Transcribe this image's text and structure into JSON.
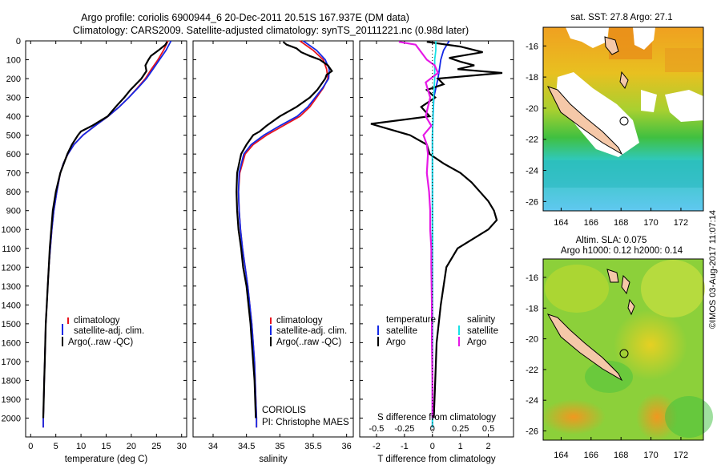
{
  "header": {
    "line1": "Argo profile: coriolis 6900944_6 20-Dec-2011 20.51S 167.937E (DM data)",
    "line2": "Climatology: CARS2009. Satellite-adjusted climatology: synTS_20111221.nc (0.98d later)"
  },
  "credit": {
    "institution": "CORIOLIS",
    "pi": "PI: Christophe MAES"
  },
  "stamp": "©IMOS 03-Aug-2017 11:07:14",
  "colors": {
    "climatology": "#e8141e",
    "satellite": "#1428e6",
    "argo": "#000000",
    "salinity_satellite": "#19e1e6",
    "salinity_argo": "#e619e6"
  },
  "chart_data": [
    {
      "type": "line",
      "id": "temperature",
      "xlabel": "temperature (deg C)",
      "ylabel": "",
      "xlim": [
        -1,
        31
      ],
      "ylim": [
        2100,
        0
      ],
      "xticks": [
        0,
        5,
        10,
        15,
        20,
        25,
        30
      ],
      "yticks": [
        0,
        100,
        200,
        300,
        400,
        500,
        600,
        700,
        800,
        900,
        1000,
        1100,
        1200,
        1300,
        1400,
        1500,
        1600,
        1700,
        1800,
        1900,
        2000
      ],
      "legend": [
        "climatology",
        "satellite-adj. clim.",
        "Argo(..raw -QC)"
      ],
      "series": [
        {
          "name": "climatology",
          "depth": [
            0,
            50,
            100,
            150,
            200,
            250,
            300,
            350,
            400,
            450,
            500,
            550,
            600,
            650,
            700,
            800,
            900,
            1000,
            1100,
            1200,
            1300,
            1400,
            1500,
            1600,
            1700,
            1800,
            1900,
            2000,
            2050
          ],
          "values": [
            27.3,
            26.4,
            25.3,
            24.0,
            22.8,
            21.2,
            19.5,
            17.6,
            15.4,
            12.8,
            10.4,
            8.6,
            7.4,
            6.5,
            5.9,
            5.2,
            4.6,
            4.2,
            3.9,
            3.6,
            3.4,
            3.2,
            3.0,
            2.9,
            2.8,
            2.7,
            2.6,
            2.5,
            2.5
          ]
        },
        {
          "name": "satellite-adj. clim.",
          "depth": [
            0,
            50,
            100,
            150,
            200,
            250,
            300,
            350,
            400,
            450,
            500,
            550,
            600,
            650,
            700,
            800,
            900,
            1000,
            1100,
            1200,
            1300,
            1400,
            1500,
            1600,
            1700,
            1800,
            1900,
            2000,
            2050
          ],
          "values": [
            27.9,
            26.9,
            25.6,
            24.3,
            23.0,
            21.3,
            19.5,
            17.6,
            15.4,
            12.8,
            10.4,
            8.6,
            7.4,
            6.5,
            5.9,
            5.2,
            4.6,
            4.2,
            3.9,
            3.6,
            3.4,
            3.2,
            3.0,
            2.9,
            2.8,
            2.7,
            2.6,
            2.5,
            2.5
          ]
        },
        {
          "name": "Argo(..raw -QC)",
          "depth": [
            5,
            20,
            50,
            80,
            100,
            130,
            160,
            200,
            230,
            260,
            300,
            350,
            400,
            450,
            480,
            500,
            550,
            600,
            700,
            800,
            900,
            1000,
            1100,
            1200,
            1300,
            1400,
            1500,
            1600,
            1700,
            1800,
            1900,
            2000
          ],
          "values": [
            27.1,
            26.8,
            25.4,
            23.9,
            23.4,
            22.8,
            23.0,
            22.0,
            20.9,
            19.8,
            18.6,
            16.9,
            15.3,
            12.2,
            10.0,
            9.4,
            8.2,
            7.3,
            5.9,
            5.0,
            4.4,
            4.1,
            3.8,
            3.6,
            3.4,
            3.2,
            3.0,
            2.9,
            2.8,
            2.7,
            2.6,
            2.5
          ]
        }
      ]
    },
    {
      "type": "line",
      "id": "salinity",
      "xlabel": "salinity",
      "ylabel": "",
      "xlim": [
        33.7,
        36.1
      ],
      "xticks": [
        34,
        34.5,
        35,
        35.5,
        36
      ],
      "xticklabels": [
        "34",
        "34.5",
        "35",
        "35.5",
        "36"
      ],
      "legend": [
        "climatology",
        "satellite-adj. clim.",
        "Argo(..raw -QC)"
      ],
      "series": [
        {
          "name": "climatology",
          "depth": [
            0,
            50,
            100,
            150,
            200,
            250,
            300,
            350,
            400,
            450,
            500,
            550,
            600,
            700,
            800,
            900,
            1000,
            1100,
            1200,
            1300,
            1400,
            1500,
            1600,
            1700,
            1800,
            1900,
            2000,
            2050
          ],
          "values": [
            35.3,
            35.5,
            35.65,
            35.7,
            35.72,
            35.65,
            35.55,
            35.45,
            35.3,
            35.05,
            34.8,
            34.6,
            34.48,
            34.4,
            34.38,
            34.39,
            34.41,
            34.44,
            34.48,
            34.52,
            34.55,
            34.58,
            34.6,
            34.62,
            34.63,
            34.64,
            34.65,
            34.65
          ]
        },
        {
          "name": "satellite-adj. clim.",
          "depth": [
            0,
            50,
            100,
            150,
            200,
            250,
            300,
            350,
            400,
            450,
            500,
            550,
            600,
            700,
            800,
            900,
            1000,
            1100,
            1200,
            1300,
            1400,
            1500,
            1600,
            1700,
            1800,
            1900,
            2000,
            2050
          ],
          "values": [
            35.35,
            35.55,
            35.68,
            35.74,
            35.73,
            35.64,
            35.53,
            35.42,
            35.26,
            35.0,
            34.76,
            34.57,
            34.46,
            34.39,
            34.38,
            34.39,
            34.41,
            34.44,
            34.48,
            34.52,
            34.55,
            34.58,
            34.6,
            34.62,
            34.63,
            34.64,
            34.65,
            34.65
          ]
        },
        {
          "name": "Argo(..raw -QC)",
          "depth": [
            5,
            20,
            40,
            60,
            80,
            100,
            130,
            160,
            180,
            200,
            230,
            260,
            300,
            350,
            400,
            450,
            480,
            500,
            550,
            600,
            700,
            800,
            900,
            1000,
            1100,
            1200,
            1300,
            1400,
            1500,
            1600,
            1700,
            1800,
            1900,
            2000
          ],
          "values": [
            35.05,
            35.1,
            35.25,
            35.32,
            35.45,
            35.6,
            35.72,
            35.78,
            35.7,
            35.68,
            35.62,
            35.56,
            35.45,
            35.25,
            35.0,
            34.8,
            34.7,
            34.6,
            34.5,
            34.42,
            34.36,
            34.35,
            34.36,
            34.38,
            34.42,
            34.45,
            34.5,
            34.53,
            34.56,
            34.58,
            34.6,
            34.62,
            34.63,
            34.64
          ]
        }
      ]
    },
    {
      "type": "line",
      "id": "difference",
      "xlabel": "T difference from climatology",
      "xlabel2": "S difference from climatology",
      "xlim": [
        -2.6,
        2.9
      ],
      "xticks": [
        -2,
        -1,
        0,
        1,
        2
      ],
      "sticks": [
        -0.5,
        -0.25,
        0,
        0.25,
        0.5
      ],
      "sticklabels": [
        "-0.5",
        "-0.25",
        "0",
        "0.25",
        "0.5"
      ],
      "legend_headers": [
        "temperature",
        "salinity"
      ],
      "legend": [
        "satellite",
        "Argo",
        "satellite",
        "Argo"
      ],
      "series": [
        {
          "name": "satellite",
          "quantity": "temperature",
          "depth": [
            0,
            50,
            100,
            150,
            200,
            300,
            500,
            800,
            1200,
            1600,
            2050
          ],
          "values": [
            0.6,
            0.4,
            0.3,
            0.25,
            0.2,
            0.05,
            0,
            0,
            0,
            0,
            0
          ]
        },
        {
          "name": "Argo",
          "quantity": "temperature",
          "depth": [
            5,
            30,
            60,
            90,
            110,
            130,
            150,
            170,
            200,
            230,
            260,
            300,
            350,
            400,
            440,
            470,
            500,
            550,
            600,
            650,
            700,
            750,
            800,
            850,
            900,
            950,
            1000,
            1100,
            1200,
            1400,
            1600,
            1800,
            2000
          ],
          "values": [
            -0.2,
            1.0,
            1.8,
            0.6,
            1.0,
            1.5,
            0.9,
            2.5,
            0.2,
            0.4,
            -0.2,
            0.1,
            -0.4,
            -0.1,
            -2.2,
            -1.5,
            -0.8,
            -0.2,
            -0.1,
            0.4,
            1.0,
            1.4,
            1.7,
            2.0,
            2.2,
            2.3,
            2.0,
            0.9,
            0.5,
            0.3,
            0.15,
            0.1,
            0.05
          ]
        },
        {
          "name": "satellite",
          "quantity": "salinity",
          "depth": [
            0,
            50,
            100,
            150,
            200,
            300,
            500,
            800,
            1200,
            1600,
            2050
          ],
          "values": [
            0.03,
            0.03,
            0.02,
            0.02,
            0.02,
            0.01,
            0,
            0,
            0,
            0,
            0
          ]
        },
        {
          "name": "Argo",
          "quantity": "salinity",
          "depth": [
            5,
            20,
            60,
            100,
            130,
            170,
            220,
            300,
            400,
            450,
            500,
            550,
            600,
            700,
            800,
            900,
            1000,
            1100,
            1200,
            1400,
            1600,
            1800,
            2000
          ],
          "values": [
            -0.3,
            -0.15,
            -0.1,
            -0.05,
            0.02,
            0.05,
            -0.06,
            -0.02,
            -0.06,
            -0.01,
            -0.08,
            -0.05,
            -0.04,
            -0.05,
            -0.03,
            -0.02,
            -0.02,
            -0.01,
            -0.01,
            -0.005,
            -0.005,
            0,
            0
          ]
        }
      ]
    },
    {
      "type": "heatmap",
      "id": "sst-map",
      "title": "sat. SST: 27.8 Argo: 27.1",
      "xlim": [
        162.8,
        173.5
      ],
      "ylim": [
        -26.6,
        -14.8
      ],
      "xticks": [
        164,
        166,
        168,
        170,
        172
      ],
      "yticks": [
        -16,
        -18,
        -20,
        -22,
        -24,
        -26
      ],
      "marker": {
        "lon": 167.937,
        "lat": -20.51
      }
    },
    {
      "type": "heatmap",
      "id": "sla-map",
      "title": "Altim. SLA: 0.075",
      "subtitle": "Argo h1000: 0.12 h2000: 0.14",
      "xlim": [
        162.8,
        173.5
      ],
      "ylim": [
        -26.6,
        -14.8
      ],
      "xticks": [
        164,
        166,
        168,
        170,
        172
      ],
      "yticks": [
        -16,
        -18,
        -20,
        -22,
        -24,
        -26
      ],
      "marker": {
        "lon": 167.937,
        "lat": -20.51
      }
    }
  ]
}
